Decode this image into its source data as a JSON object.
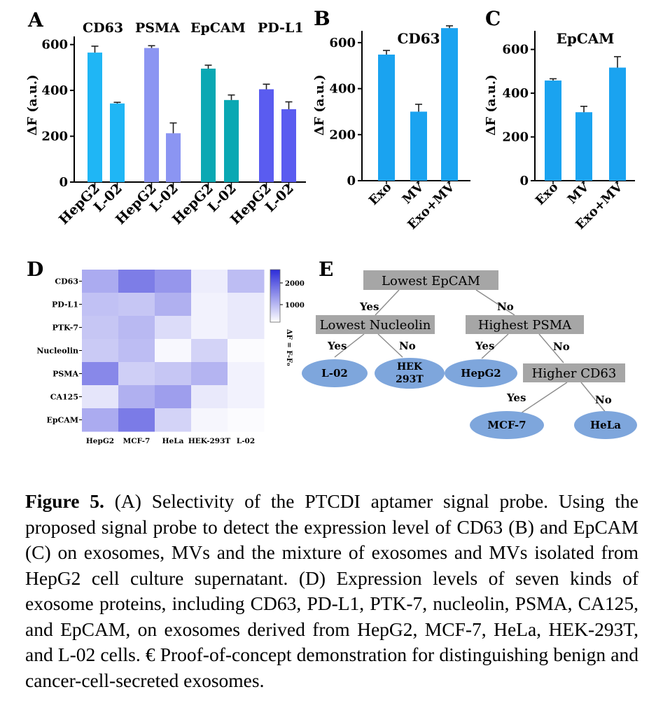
{
  "panels": {
    "a": {
      "letter": "A",
      "group_labels": [
        "CD63",
        "PSMA",
        "EpCAM",
        "PD-L1"
      ],
      "ylabel": "ΔF (a.u.)",
      "yticks": [
        "0",
        "200",
        "400",
        "600"
      ]
    },
    "b": {
      "letter": "B",
      "title": "CD63",
      "ylabel": "ΔF (a.u.)",
      "yticks": [
        "0",
        "200",
        "400",
        "600"
      ]
    },
    "c": {
      "letter": "C",
      "title": "EpCAM",
      "ylabel": "ΔF (a.u.)",
      "yticks": [
        "0",
        "200",
        "400",
        "600"
      ]
    },
    "d": {
      "letter": "D",
      "colorbar_ticks": [
        "2000",
        "1000"
      ],
      "colorbar_label": "ΔF = F-F₀"
    },
    "e": {
      "letter": "E",
      "nodes": {
        "root": "Lowest EpCAM",
        "left": "Lowest Nucleolin",
        "right": "Highest PSMA",
        "right_right": "Higher CD63"
      },
      "leaves": {
        "l02": "L-02",
        "hek_line1": "HEK",
        "hek_line2": "293T",
        "hepg2": "HepG2",
        "mcf7": "MCF-7",
        "hela": "HeLa"
      },
      "edges": {
        "root_yes": "Yes",
        "root_no": "No",
        "left_yes": "Yes",
        "left_no": "No",
        "right_yes": "Yes",
        "right_no": "No",
        "rr_yes": "Yes",
        "rr_no": "No"
      },
      "colors": {
        "box": "#a6a6a6",
        "leaf": "#7ea6dc"
      }
    }
  },
  "chart_data": [
    {
      "panel": "A",
      "type": "bar",
      "categories": [
        "HepG2",
        "L-02",
        "HepG2",
        "L-02",
        "HepG2",
        "L-02",
        "HepG2",
        "L-02"
      ],
      "values": [
        565,
        343,
        585,
        213,
        495,
        358,
        405,
        318
      ],
      "errors": [
        28,
        5,
        10,
        45,
        15,
        22,
        22,
        32
      ],
      "colors": [
        "#1fb6f5",
        "#1fb6f5",
        "#8b95f2",
        "#8b95f2",
        "#0aa8b3",
        "#0aa8b3",
        "#5a5cf0",
        "#5a5cf0"
      ],
      "ylabel": "ΔF (a.u.)",
      "ylim": [
        0,
        660
      ]
    },
    {
      "panel": "B",
      "type": "bar",
      "title": "CD63",
      "categories": [
        "Exo",
        "MV",
        "Exo+MV"
      ],
      "values": [
        548,
        300,
        663
      ],
      "errors": [
        18,
        32,
        10
      ],
      "colors": [
        "#1aa3f0",
        "#1aa3f0",
        "#1aa3f0"
      ],
      "ylabel": "ΔF (a.u.)",
      "ylim": [
        0,
        700
      ]
    },
    {
      "panel": "C",
      "type": "bar",
      "title": "EpCAM",
      "categories": [
        "Exo",
        "MV",
        "Exo+MV"
      ],
      "values": [
        458,
        313,
        517
      ],
      "errors": [
        8,
        27,
        50
      ],
      "colors": [
        "#1aa3f0",
        "#1aa3f0",
        "#1aa3f0"
      ],
      "ylabel": "ΔF (a.u.)",
      "ylim": [
        0,
        730
      ]
    },
    {
      "panel": "D",
      "type": "heatmap",
      "rows": [
        "CD63",
        "PD-L1",
        "PTK-7",
        "Nucleolin",
        "PSMA",
        "CA125",
        "EpCAM"
      ],
      "columns": [
        "HepG2",
        "MCF-7",
        "HeLa",
        "HEK-293T",
        "L-02"
      ],
      "values": [
        [
          950,
          1480,
          1200,
          200,
          750
        ],
        [
          700,
          650,
          900,
          150,
          250
        ],
        [
          650,
          800,
          400,
          150,
          250
        ],
        [
          600,
          750,
          80,
          500,
          50
        ],
        [
          1350,
          550,
          650,
          850,
          150
        ],
        [
          300,
          900,
          1100,
          250,
          150
        ],
        [
          950,
          1500,
          500,
          100,
          50
        ]
      ],
      "vmin": 0,
      "vmax": 2400
    }
  ],
  "caption": {
    "label": "Figure 5.",
    "text": " (A) Selectivity of the PTCDI aptamer signal probe. Using the proposed signal probe to detect the expression level of CD63 (B) and EpCAM (C) on exosomes, MVs and the mixture of exosomes and MVs isolated from HepG2 cell culture supernatant. (D) Expression levels of seven kinds of exosome proteins, including CD63, PD-L1, PTK-7, nucleolin, PSMA, CA125, and EpCAM, on exosomes derived from HepG2, MCF-7, HeLa, HEK-293T, and L-02 cells. € Proof-of-concept demonstration for distinguishing benign and cancer-cell-secreted exosomes."
  }
}
